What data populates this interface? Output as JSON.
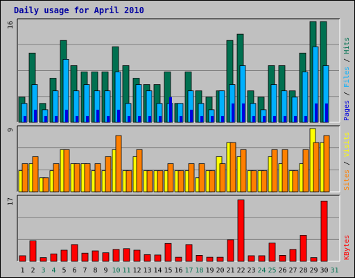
{
  "title": "Daily usage for April 2010",
  "colors": {
    "background": "#c0c0c0",
    "plot_bg": "#c0c0c0",
    "grid": "#808080",
    "title": "#0000a0",
    "hits": "#007050",
    "files": "#00b0ff",
    "pages": "#0000e0",
    "visits": "#ffff00",
    "sites": "#ff8000",
    "kbytes": "#ff0000",
    "weekday_label": "#000000",
    "weekend_label": "#007050"
  },
  "chart_data": [
    {
      "type": "bar",
      "name": "hits-files-pages",
      "y_max_label": "16",
      "ylim": [
        0,
        16
      ],
      "series": [
        {
          "name": "Hits",
          "values": [
            4,
            11,
            3,
            7,
            13,
            9,
            8,
            8,
            8,
            12,
            9,
            7,
            6,
            6,
            8,
            3,
            8,
            5,
            4,
            5,
            13,
            14,
            5,
            4,
            9,
            9,
            5,
            11,
            16,
            16,
            0
          ]
        },
        {
          "name": "Files",
          "values": [
            3,
            6,
            2,
            5,
            10,
            5,
            6,
            5,
            5,
            8,
            3,
            6,
            5,
            3,
            3,
            3,
            5,
            3,
            2,
            5,
            6,
            9,
            3,
            2,
            6,
            5,
            4,
            8,
            12,
            9,
            0
          ]
        },
        {
          "name": "Pages",
          "values": [
            1,
            2,
            1,
            1,
            2,
            1,
            1,
            2,
            1,
            2,
            1,
            1,
            1,
            1,
            4,
            1,
            2,
            1,
            1,
            1,
            3,
            3,
            1,
            1,
            1,
            1,
            1,
            1,
            3,
            3,
            0
          ]
        }
      ],
      "legend_labels": [
        "Pages",
        "Files",
        "Hits"
      ]
    },
    {
      "type": "bar",
      "name": "visits-sites",
      "y_max_label": "9",
      "ylim": [
        0,
        9
      ],
      "series": [
        {
          "name": "Visits",
          "values": [
            3,
            4,
            2,
            3,
            6,
            4,
            4,
            3,
            3,
            6,
            3,
            5,
            3,
            3,
            3,
            3,
            3,
            2,
            3,
            5,
            7,
            5,
            3,
            3,
            5,
            4,
            3,
            4,
            9,
            7,
            0
          ]
        },
        {
          "name": "Sites",
          "values": [
            4,
            5,
            2,
            4,
            6,
            4,
            4,
            4,
            5,
            8,
            3,
            6,
            3,
            3,
            4,
            3,
            4,
            4,
            3,
            4,
            7,
            6,
            3,
            3,
            6,
            6,
            3,
            6,
            7,
            8,
            0
          ]
        }
      ],
      "legend_labels": [
        "Sites",
        "Visits"
      ]
    },
    {
      "type": "bar",
      "name": "kbytes",
      "y_max_label": "17",
      "ylim": [
        0,
        17
      ],
      "series": [
        {
          "name": "KBytes",
          "values": [
            1.5,
            5.5,
            1,
            2,
            3,
            4.5,
            2.2,
            2.8,
            2.3,
            3.2,
            3.4,
            3,
            1.8,
            1.7,
            4.8,
            1.1,
            4.5,
            1.6,
            1.1,
            1.1,
            5.8,
            16.5,
            1.5,
            1.5,
            4.9,
            1.6,
            3.2,
            7,
            1,
            16.2,
            0
          ]
        }
      ],
      "legend_labels": [
        "KBytes"
      ]
    }
  ],
  "x_days": [
    "1",
    "2",
    "3",
    "4",
    "5",
    "6",
    "7",
    "8",
    "9",
    "10",
    "11",
    "12",
    "13",
    "14",
    "15",
    "16",
    "17",
    "18",
    "19",
    "20",
    "21",
    "22",
    "23",
    "24",
    "25",
    "26",
    "27",
    "28",
    "29",
    "30",
    "31"
  ],
  "weekend_days": [
    3,
    4,
    10,
    11,
    17,
    18,
    24,
    25,
    31
  ],
  "panels_layout": [
    {
      "top": 27,
      "bottom": 176
    },
    {
      "top": 181,
      "bottom": 276
    },
    {
      "top": 281,
      "bottom": 376
    }
  ]
}
